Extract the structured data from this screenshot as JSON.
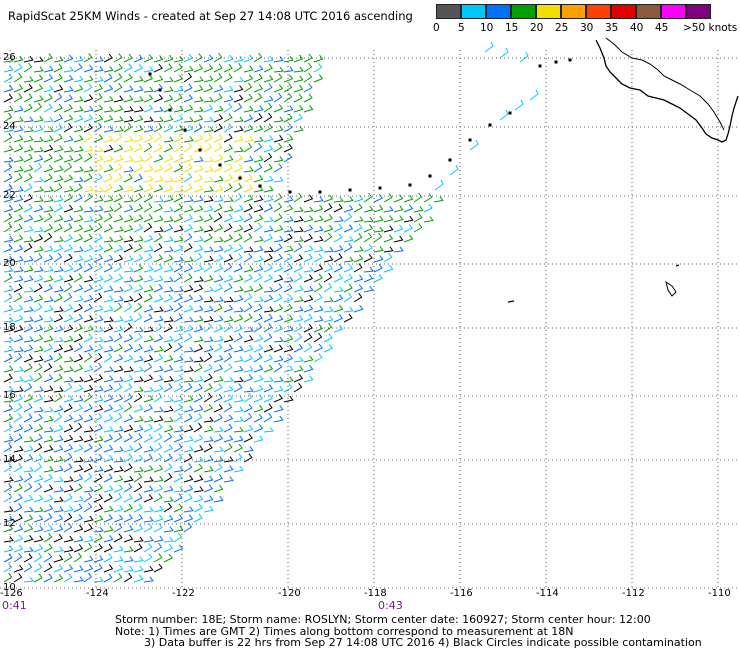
{
  "title": "RapidScat 25KM Winds - created at Sep 27 14:08 UTC 2016 ascending",
  "legend": {
    "labels": [
      "0",
      "5",
      "10",
      "15",
      "20",
      "25",
      "30",
      "35",
      "40",
      "45",
      ">50 knots"
    ],
    "colors": [
      "#444444",
      "#8a8a8a",
      "#00c8ff",
      "#0070ff",
      "#0000a0",
      "#00a000",
      "#40d040",
      "#f0e000",
      "#ffa000",
      "#ff4000",
      "#e00000",
      "#a00000",
      "#884422",
      "#cc00cc",
      "#ff00ff",
      "#800080"
    ]
  },
  "map": {
    "lat_labels": [
      "26",
      "24",
      "22",
      "20",
      "18",
      "16",
      "14",
      "12",
      "10"
    ],
    "lon_labels": [
      "-126",
      "-124",
      "-122",
      "-120",
      "-118",
      "-116",
      "-114",
      "-112",
      "-110"
    ],
    "extent": {
      "lon": [
        -126,
        -110
      ],
      "lat": [
        10,
        26
      ]
    }
  },
  "times": {
    "left": "0:41",
    "mid": "0:43"
  },
  "footer": {
    "line1": "Storm number: 18E;  Storm name: ROSLYN;  Storm center date: 160927;  Storm center hour: 12:00",
    "line2": "Note: 1) Times are GMT  2) Times along bottom correspond to measurement at 18N",
    "line3": "3) Data buffer is 22 hrs from Sep 27 14:08 UTC 2016  4) Black Circles indicate possible contamination"
  }
}
